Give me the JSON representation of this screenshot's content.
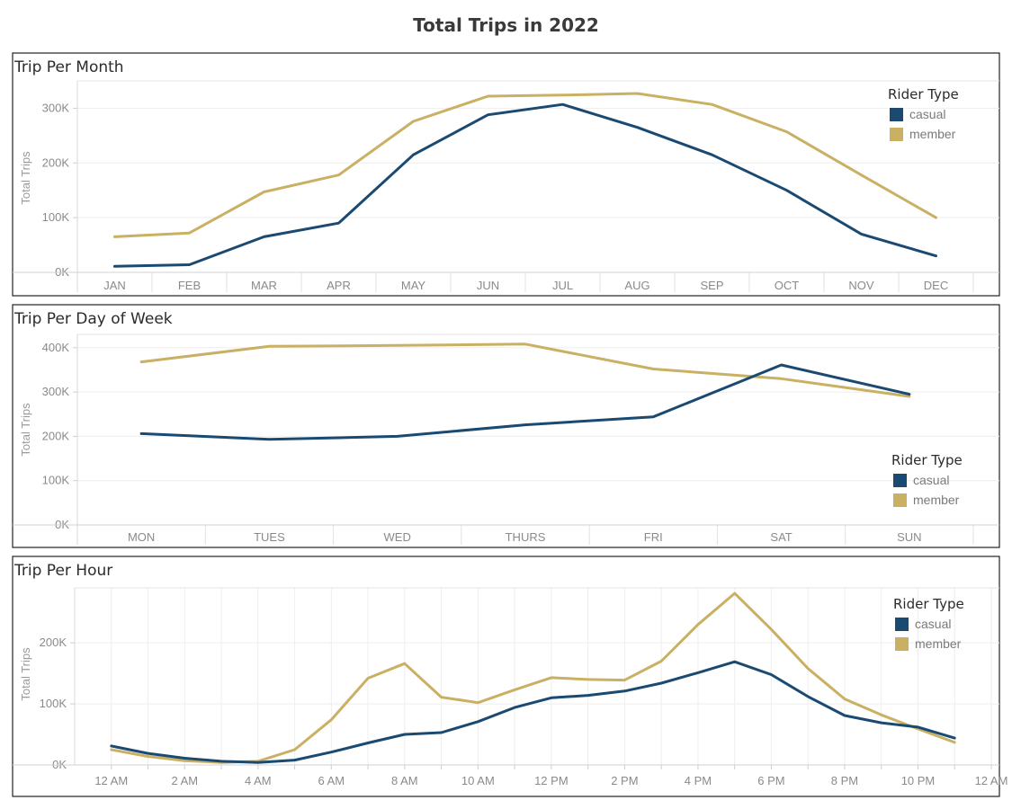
{
  "title": "Total Trips in 2022",
  "colors": {
    "casual": "#1a4a72",
    "member": "#c9b063"
  },
  "chart_data": [
    {
      "type": "line",
      "title": "Trip Per Month",
      "ylabel": "Total Trips",
      "xlabel": "",
      "categories": [
        "JAN",
        "FEB",
        "MAR",
        "APR",
        "MAY",
        "JUN",
        "JUL",
        "AUG",
        "SEP",
        "OCT",
        "NOV",
        "DEC"
      ],
      "yticks": [
        0,
        100000,
        200000,
        300000
      ],
      "yticklabels": [
        "0K",
        "100K",
        "200K",
        "300K"
      ],
      "ylim": [
        0,
        350000
      ],
      "legend": {
        "title": "Rider Type",
        "position": "top-right"
      },
      "series": [
        {
          "name": "casual",
          "values": [
            11000,
            14000,
            65000,
            90000,
            215000,
            288000,
            307000,
            265000,
            215000,
            150000,
            70000,
            30000
          ]
        },
        {
          "name": "member",
          "values": [
            65000,
            72000,
            147000,
            178000,
            276000,
            322000,
            324000,
            327000,
            307000,
            257000,
            178000,
            100000
          ]
        }
      ]
    },
    {
      "type": "line",
      "title": "Trip Per Day of Week",
      "ylabel": "Total Trips",
      "xlabel": "",
      "categories": [
        "MON",
        "TUES",
        "WED",
        "THURS",
        "FRI",
        "SAT",
        "SUN"
      ],
      "yticks": [
        0,
        100000,
        200000,
        300000,
        400000
      ],
      "yticklabels": [
        "0K",
        "100K",
        "200K",
        "300K",
        "400K"
      ],
      "ylim": [
        0,
        430000
      ],
      "legend": {
        "title": "Rider Type",
        "position": "right"
      },
      "series": [
        {
          "name": "casual",
          "values": [
            206000,
            193000,
            200000,
            226000,
            244000,
            361000,
            295000
          ]
        },
        {
          "name": "member",
          "values": [
            368000,
            403000,
            405000,
            408000,
            352000,
            330000,
            290000
          ]
        }
      ]
    },
    {
      "type": "line",
      "title": "Trip Per Hour",
      "ylabel": "Total Trips",
      "xlabel": "",
      "x": [
        0,
        1,
        2,
        3,
        4,
        5,
        6,
        7,
        8,
        9,
        10,
        11,
        12,
        13,
        14,
        15,
        16,
        17,
        18,
        19,
        20,
        21,
        22,
        23
      ],
      "xticks": [
        0,
        2,
        4,
        6,
        8,
        10,
        12,
        14,
        16,
        18,
        20,
        22,
        24
      ],
      "xticklabels": [
        "12 AM",
        "2 AM",
        "4 AM",
        "6 AM",
        "8 AM",
        "10 AM",
        "12 PM",
        "2 PM",
        "4 PM",
        "6 PM",
        "8 PM",
        "10 PM",
        "12 AM"
      ],
      "xlim": [
        -1,
        24
      ],
      "yticks": [
        0,
        100000,
        200000
      ],
      "yticklabels": [
        "0K",
        "100K",
        "200K"
      ],
      "ylim": [
        0,
        290000
      ],
      "legend": {
        "title": "Rider Type",
        "position": "top-right"
      },
      "series": [
        {
          "name": "casual",
          "values": [
            31000,
            19000,
            11000,
            6000,
            4000,
            8000,
            21000,
            36000,
            50000,
            53000,
            71000,
            94000,
            110000,
            114000,
            121000,
            134000,
            151000,
            169000,
            148000,
            112000,
            81000,
            69000,
            62000,
            44000
          ]
        },
        {
          "name": "member",
          "values": [
            25000,
            14000,
            7000,
            4000,
            6000,
            25000,
            74000,
            142000,
            166000,
            111000,
            102000,
            123000,
            143000,
            140000,
            139000,
            170000,
            230000,
            281000,
            222000,
            158000,
            108000,
            82000,
            59000,
            37000
          ]
        }
      ]
    }
  ]
}
